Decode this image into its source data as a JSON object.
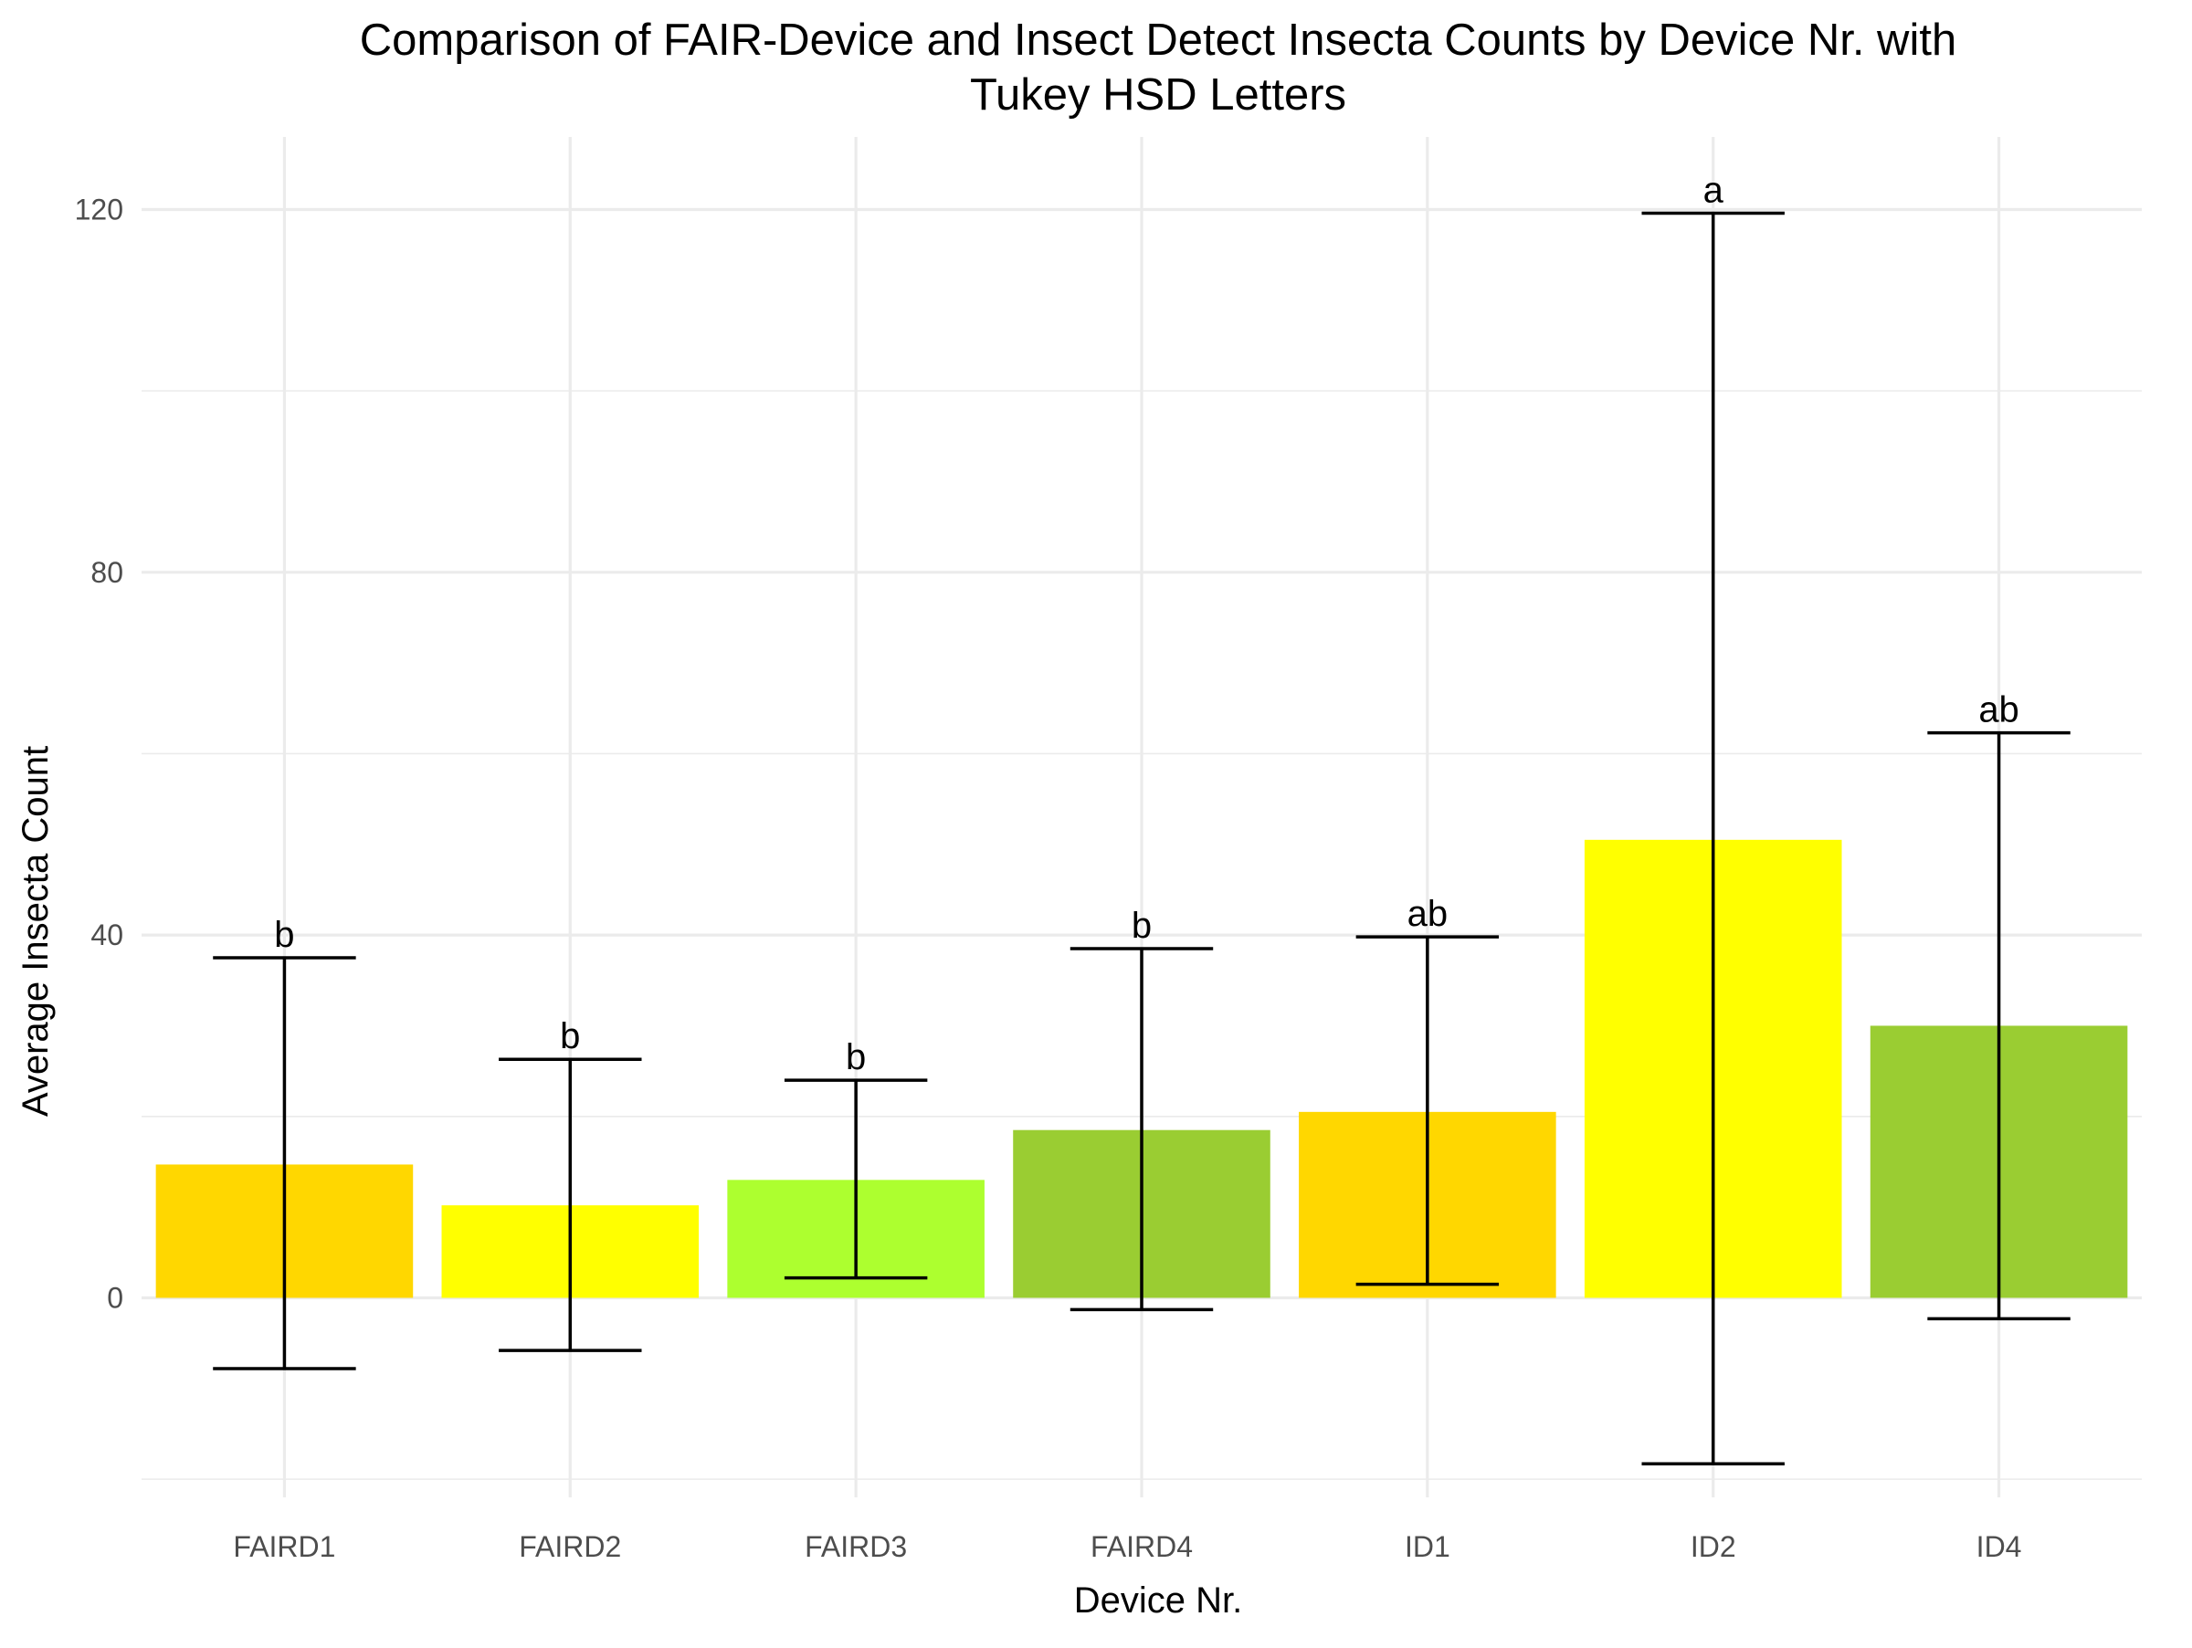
{
  "chart_data": {
    "type": "bar",
    "title_lines": [
      "Comparison of FAIR-Device and Insect Detect Insecta Counts by Device Nr. with",
      "Tukey HSD Letters"
    ],
    "xlabel": "Device Nr.",
    "ylabel": "Average Insecta Count",
    "ylim": [
      -22,
      128
    ],
    "y_ticks": [
      0,
      40,
      80,
      120
    ],
    "y_minor_ticks": [
      -20,
      20,
      60,
      100
    ],
    "grid": true,
    "categories": [
      "FAIRD1",
      "FAIRD2",
      "FAIRD3",
      "FAIRD4",
      "ID1",
      "ID2",
      "ID4"
    ],
    "values": [
      14.7,
      10.2,
      13.0,
      18.5,
      20.5,
      50.5,
      30.0
    ],
    "error_low": [
      -7.8,
      -5.8,
      2.2,
      -1.3,
      1.5,
      -18.3,
      -2.3
    ],
    "error_high": [
      37.5,
      26.3,
      24.0,
      38.5,
      39.8,
      119.6,
      62.3
    ],
    "tukey_letters": [
      "b",
      "b",
      "b",
      "b",
      "ab",
      "a",
      "ab"
    ],
    "bar_colors": [
      "#FFD700",
      "#FFFF00",
      "#ADFF2F",
      "#9ACD32",
      "#FFD700",
      "#FFFF00",
      "#9ACD32"
    ]
  }
}
